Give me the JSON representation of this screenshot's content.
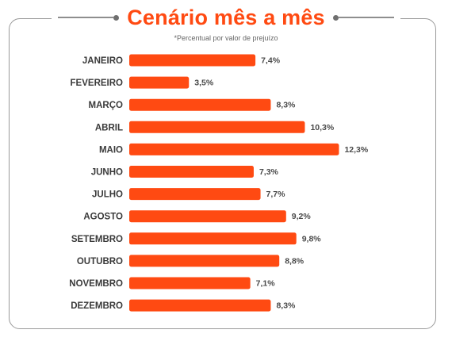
{
  "chart_data": {
    "type": "bar",
    "orientation": "horizontal",
    "title": "Cenário mês a mês",
    "subtitle": "*Percentual por valor de prejuízo",
    "bar_color": "#ff4a12",
    "categories": [
      "JANEIRO",
      "FEVEREIRO",
      "MARÇO",
      "ABRIL",
      "MAIO",
      "JUNHO",
      "JULHO",
      "AGOSTO",
      "SETEMBRO",
      "OUTUBRO",
      "NOVEMBRO",
      "DEZEMBRO"
    ],
    "values": [
      7.4,
      3.5,
      8.3,
      10.3,
      12.3,
      7.3,
      7.7,
      9.2,
      9.8,
      8.8,
      7.1,
      8.3
    ],
    "value_labels": [
      "7,4%",
      "3,5%",
      "8,3%",
      "10,3%",
      "12,3%",
      "7,3%",
      "7,7%",
      "9,2%",
      "9,8%",
      "8,8%",
      "7,1%",
      "8,3%"
    ],
    "grid": false,
    "legend": "none"
  }
}
